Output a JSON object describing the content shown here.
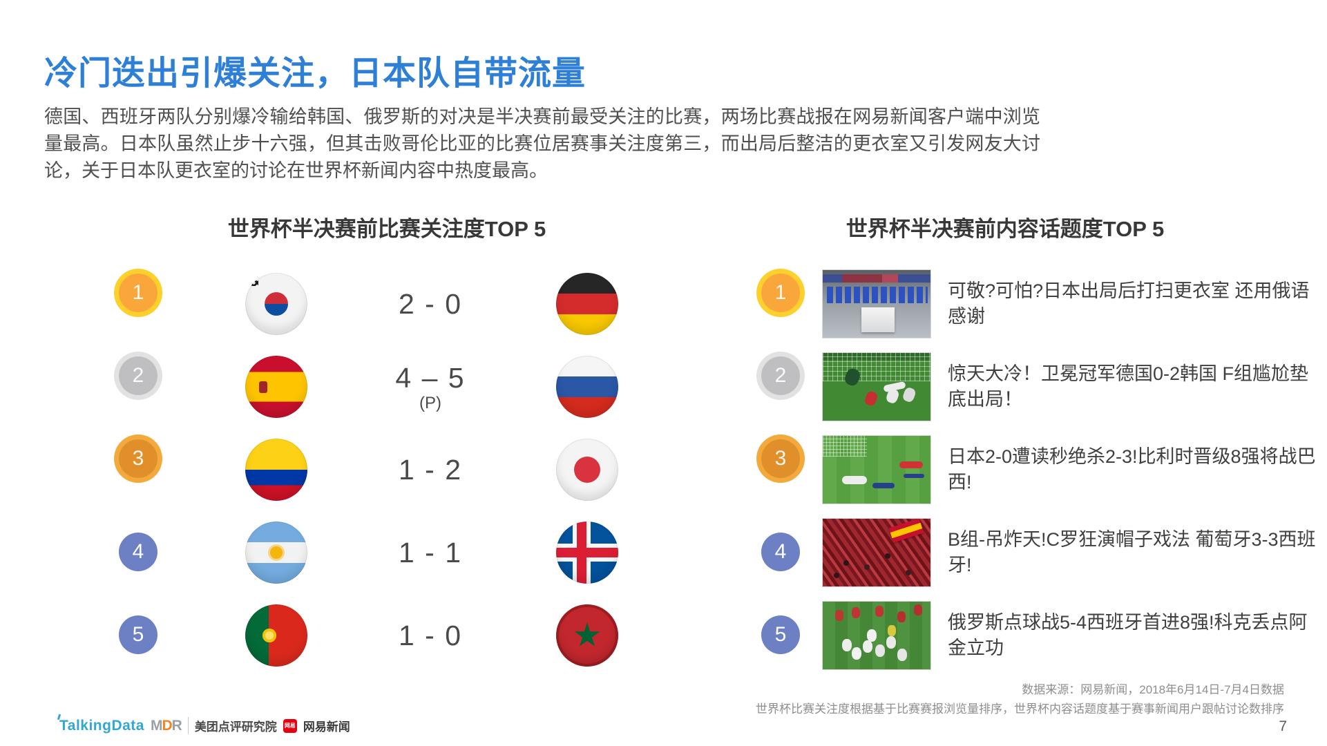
{
  "slide": {
    "title": "冷门迭出引爆关注，日本队自带流量",
    "paragraph": "德国、西班牙两队分别爆冷输给韩国、俄罗斯的对决是半决赛前最受关注的比赛，两场比赛战报在网易新闻客户端中浏览量最高。日本队虽然止步十六强，但其击败哥伦比亚的比赛位居赛事关注度第三，而出局后整洁的更衣室又引发网友大讨论，关于日本队更衣室的讨论在世界杯新闻内容中热度最高。",
    "page_number": "7"
  },
  "match_ranking": {
    "header": "世界杯半决赛前比赛关注度TOP 5",
    "rows": [
      {
        "rank": "1",
        "badge_class": "medal-gold",
        "home_team": "South Korea",
        "home_flag_class": "flag-kr",
        "score": "2 - 0",
        "score_note": "",
        "away_team": "Germany",
        "away_flag_class": "flag-de"
      },
      {
        "rank": "2",
        "badge_class": "medal-silver",
        "home_team": "Spain",
        "home_flag_class": "flag-es",
        "score": "4 – 5",
        "score_note": "(P)",
        "away_team": "Russia",
        "away_flag_class": "flag-ru"
      },
      {
        "rank": "3",
        "badge_class": "medal-bronze",
        "home_team": "Colombia",
        "home_flag_class": "flag-co",
        "score": "1 - 2",
        "score_note": "",
        "away_team": "Japan",
        "away_flag_class": "flag-jp"
      },
      {
        "rank": "4",
        "badge_class": "badge-blue",
        "home_team": "Argentina",
        "home_flag_class": "flag-ar",
        "score": "1 - 1",
        "score_note": "",
        "away_team": "Iceland",
        "away_flag_class": "flag-is"
      },
      {
        "rank": "5",
        "badge_class": "badge-blue",
        "home_team": "Portugal",
        "home_flag_class": "flag-pt",
        "score": "1 - 0",
        "score_note": "",
        "away_team": "Morocco",
        "away_flag_class": "flag-ma"
      }
    ]
  },
  "topic_ranking": {
    "header": "世界杯半决赛前内容话题度TOP 5",
    "rows": [
      {
        "rank": "1",
        "badge_class": "medal-gold",
        "thumb_class": "thumb-locker",
        "thumb_label": "japan-locker-room-photo",
        "headline": "可敬?可怕?日本出局后打扫更衣室 还用俄语感谢"
      },
      {
        "rank": "2",
        "badge_class": "medal-silver",
        "thumb_class": "thumb-goalmouth",
        "thumb_label": "germany-korea-goalmouth-photo",
        "headline": "惊天大冷！卫冕冠军德国0-2韩国 F组尴尬垫底出局！"
      },
      {
        "rank": "3",
        "badge_class": "medal-bronze",
        "thumb_class": "thumb-japan-down",
        "thumb_label": "japan-belgium-match-photo",
        "headline": "日本2-0遭读秒绝杀2-3!比利时晋级8强将战巴西!"
      },
      {
        "rank": "4",
        "badge_class": "badge-blue",
        "thumb_class": "thumb-fans",
        "thumb_label": "spain-fans-photo",
        "headline": "B组-吊炸天!C罗狂演帽子戏法 葡萄牙3-3西班牙!"
      },
      {
        "rank": "5",
        "badge_class": "badge-blue",
        "thumb_class": "thumb-russia",
        "thumb_label": "russia-spain-penalties-photo",
        "headline": "俄罗斯点球战5-4西班牙首进8强!科克丢点阿金立功"
      }
    ]
  },
  "footer": {
    "source_line1": "数据来源：网易新闻，2018年6月14日-7月4日数据",
    "source_line2": "世界杯比赛关注度根据基于比赛赛报浏览量排序，世界杯内容话题度基于赛事新闻用户跟帖讨论数排序",
    "logos": {
      "talkingdata": "TalkingData",
      "mdr_m": "M",
      "mdr_d": "D",
      "mdr_r": "R",
      "meituan": "美团点评研究院",
      "netease_badge": "网易",
      "netease": "网易新闻"
    }
  },
  "colors": {
    "title_blue": "#2e7fd6",
    "ribbon_orange": "#f4511e",
    "rank_blue": "#6d80c3",
    "medal_gold_ring": "#fdd02c",
    "medal_gold_fill": "#f9a63b",
    "medal_silver_ring": "#e2e2e2",
    "medal_silver_fill": "#bfbfc1",
    "medal_bronze_ring": "#f2aa3c",
    "medal_bronze_fill": "#e18f2a"
  }
}
